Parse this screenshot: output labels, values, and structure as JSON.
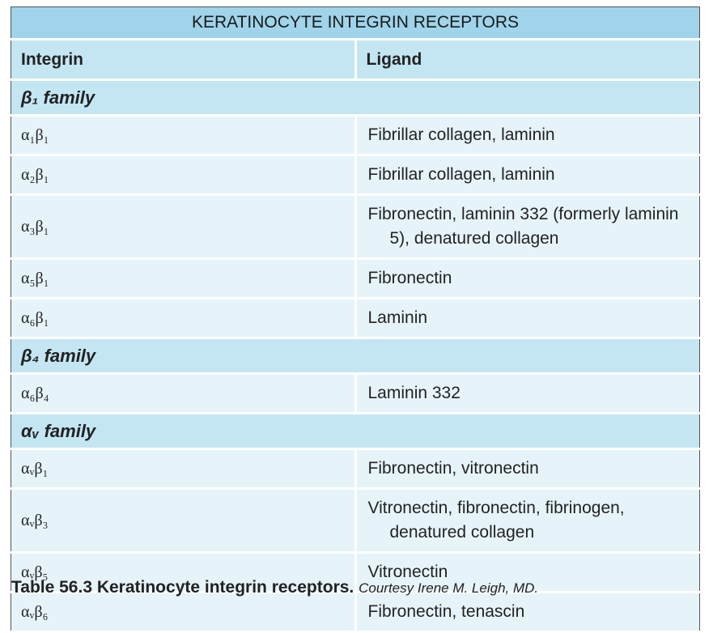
{
  "table": {
    "title": "KERATINOCYTE INTEGRIN RECEPTORS",
    "header": [
      "Integrin",
      "Ligand"
    ],
    "sections": [
      {
        "family": "β₁ family",
        "rows": [
          [
            "α₁β₁",
            "Fibrillar collagen, laminin"
          ],
          [
            "α₂β₁",
            "Fibrillar collagen, laminin"
          ],
          [
            "α₃β₁",
            "Fibronectin, laminin 332 (formerly laminin 5), denatured collagen"
          ],
          [
            "α₅β₁",
            "Fibronectin"
          ],
          [
            "α₆β₁",
            "Laminin"
          ]
        ]
      },
      {
        "family": "β₄ family",
        "rows": [
          [
            "α₆β₄",
            "Laminin 332"
          ]
        ]
      },
      {
        "family": "αᵥ family",
        "rows": [
          [
            "αᵥβ₁",
            "Fibronectin, vitronectin"
          ],
          [
            "αᵥβ₃",
            "Vitronectin, fibronectin, fibrinogen, denatured collagen"
          ],
          [
            "αᵥβ₅",
            "Vitronectin"
          ],
          [
            "αᵥβ₆",
            "Fibronectin, tenascin"
          ]
        ]
      }
    ]
  },
  "caption": {
    "label": "Table 56.3 Keratinocyte integrin receptors.",
    "credit": "Courtesy Irene M. Leigh, MD."
  }
}
